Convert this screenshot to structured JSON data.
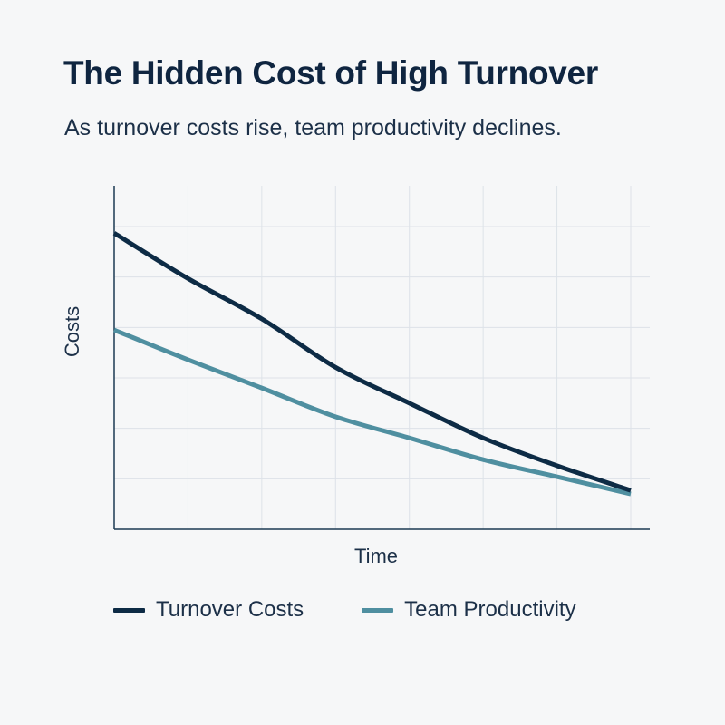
{
  "header": {
    "title": "The Hidden Cost of High Turnover",
    "subtitle": "As turnover costs rise, team productivity declines."
  },
  "colors": {
    "background": "#f6f7f8",
    "text": "#0f2540",
    "grid": "#dde2e8",
    "axis": "#1c3a52",
    "turnover_costs": "#0d2b45",
    "team_productivity": "#4f8fa0"
  },
  "chart_data": {
    "type": "line",
    "title": "The Hidden Cost of High Turnover",
    "subtitle": "As turnover costs rise, team productivity declines.",
    "xlabel": "Time",
    "ylabel": "Costs",
    "x": [
      0,
      1,
      2,
      3,
      4,
      5,
      6,
      7
    ],
    "series": [
      {
        "name": "Turnover Costs",
        "color": "#0d2b45",
        "values": [
          5.87,
          4.97,
          4.17,
          3.21,
          2.5,
          1.81,
          1.26,
          0.77
        ]
      },
      {
        "name": "Team Productivity",
        "color": "#4f8fa0",
        "values": [
          3.95,
          3.36,
          2.8,
          2.23,
          1.81,
          1.38,
          1.04,
          0.7
        ]
      }
    ],
    "xlim": [
      0,
      7.25
    ],
    "ylim": [
      0,
      6.8
    ],
    "x_tick_labels": [],
    "y_tick_labels": [],
    "grid": true,
    "legend_position": "bottom"
  },
  "legend": {
    "items": [
      {
        "label": "Turnover Costs"
      },
      {
        "label": "Team Productivity"
      }
    ]
  }
}
